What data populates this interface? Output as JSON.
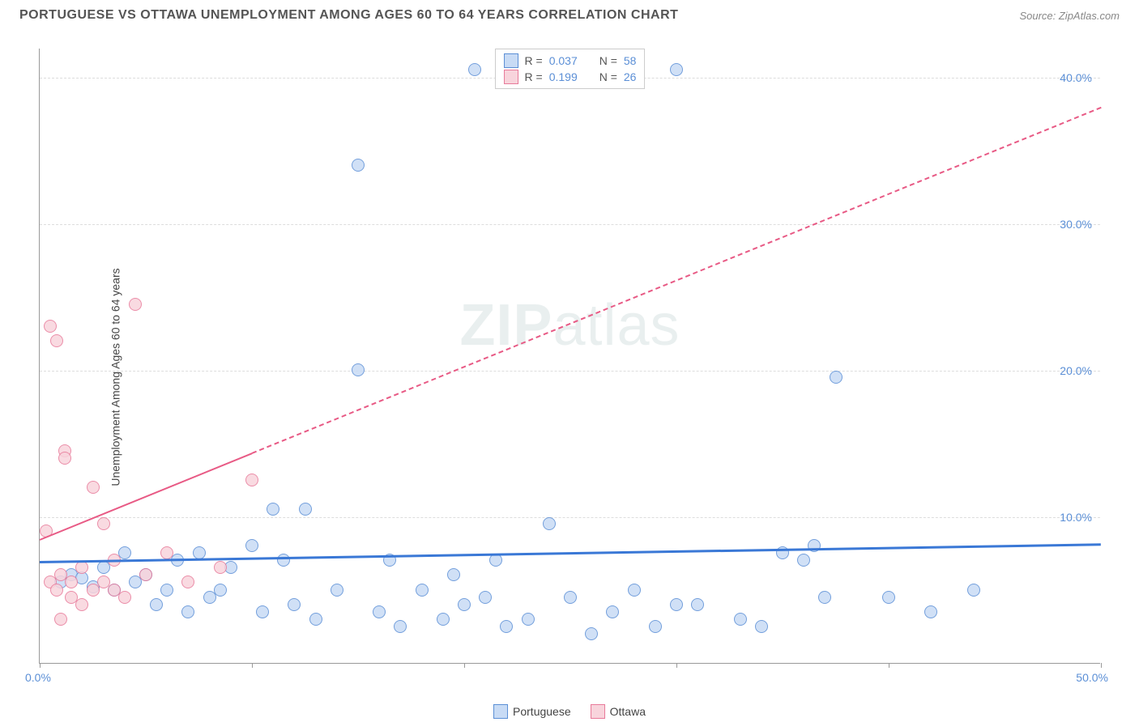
{
  "title": "PORTUGUESE VS OTTAWA UNEMPLOYMENT AMONG AGES 60 TO 64 YEARS CORRELATION CHART",
  "source": "Source: ZipAtlas.com",
  "watermark": {
    "part1": "ZIP",
    "part2": "atlas"
  },
  "chart": {
    "type": "scatter",
    "y_axis_label": "Unemployment Among Ages 60 to 64 years",
    "background_color": "#ffffff",
    "grid_color": "#dddddd",
    "axis_color": "#999999",
    "xlim": [
      0,
      50
    ],
    "ylim": [
      0,
      42
    ],
    "x_ticks": [
      0,
      10,
      20,
      30,
      40,
      50
    ],
    "x_tick_labels": {
      "0": "0.0%",
      "50": "50.0%"
    },
    "y_ticks": [
      10,
      20,
      30,
      40
    ],
    "y_tick_labels": [
      "10.0%",
      "20.0%",
      "30.0%",
      "40.0%"
    ],
    "marker_radius": 8,
    "marker_stroke_width": 1.5,
    "series": [
      {
        "name": "Portuguese",
        "fill": "#c8dbf5",
        "stroke": "#5b8fd6",
        "R": "0.037",
        "N": "58",
        "trend": {
          "y_intercept": 7.0,
          "y_at_xmax": 8.2,
          "color": "#3a78d6",
          "width": 3,
          "solid_until_x": 50
        },
        "points": [
          {
            "x": 1.0,
            "y": 5.5
          },
          {
            "x": 1.5,
            "y": 6.0
          },
          {
            "x": 2.0,
            "y": 5.8
          },
          {
            "x": 2.5,
            "y": 5.2
          },
          {
            "x": 3.0,
            "y": 6.5
          },
          {
            "x": 3.5,
            "y": 5.0
          },
          {
            "x": 4.0,
            "y": 7.5
          },
          {
            "x": 4.5,
            "y": 5.5
          },
          {
            "x": 5.0,
            "y": 6.0
          },
          {
            "x": 5.5,
            "y": 4.0
          },
          {
            "x": 6.0,
            "y": 5.0
          },
          {
            "x": 6.5,
            "y": 7.0
          },
          {
            "x": 7.0,
            "y": 3.5
          },
          {
            "x": 7.5,
            "y": 7.5
          },
          {
            "x": 8.0,
            "y": 4.5
          },
          {
            "x": 8.5,
            "y": 5.0
          },
          {
            "x": 9.0,
            "y": 6.5
          },
          {
            "x": 10.0,
            "y": 8.0
          },
          {
            "x": 10.5,
            "y": 3.5
          },
          {
            "x": 11.0,
            "y": 10.5
          },
          {
            "x": 11.5,
            "y": 7.0
          },
          {
            "x": 12.0,
            "y": 4.0
          },
          {
            "x": 12.5,
            "y": 10.5
          },
          {
            "x": 13.0,
            "y": 3.0
          },
          {
            "x": 14.0,
            "y": 5.0
          },
          {
            "x": 15.0,
            "y": 20.0
          },
          {
            "x": 15.0,
            "y": 34.0
          },
          {
            "x": 16.0,
            "y": 3.5
          },
          {
            "x": 16.5,
            "y": 7.0
          },
          {
            "x": 17.0,
            "y": 2.5
          },
          {
            "x": 18.0,
            "y": 5.0
          },
          {
            "x": 19.0,
            "y": 3.0
          },
          {
            "x": 19.5,
            "y": 6.0
          },
          {
            "x": 20.0,
            "y": 4.0
          },
          {
            "x": 20.5,
            "y": 40.5
          },
          {
            "x": 21.0,
            "y": 4.5
          },
          {
            "x": 21.5,
            "y": 7.0
          },
          {
            "x": 22.0,
            "y": 2.5
          },
          {
            "x": 23.0,
            "y": 3.0
          },
          {
            "x": 24.0,
            "y": 9.5
          },
          {
            "x": 25.0,
            "y": 4.5
          },
          {
            "x": 26.0,
            "y": 2.0
          },
          {
            "x": 27.0,
            "y": 3.5
          },
          {
            "x": 28.0,
            "y": 5.0
          },
          {
            "x": 29.0,
            "y": 2.5
          },
          {
            "x": 30.0,
            "y": 4.0
          },
          {
            "x": 30.0,
            "y": 40.5
          },
          {
            "x": 31.0,
            "y": 4.0
          },
          {
            "x": 33.0,
            "y": 3.0
          },
          {
            "x": 34.0,
            "y": 2.5
          },
          {
            "x": 35.0,
            "y": 7.5
          },
          {
            "x": 36.0,
            "y": 7.0
          },
          {
            "x": 36.5,
            "y": 8.0
          },
          {
            "x": 37.0,
            "y": 4.5
          },
          {
            "x": 37.5,
            "y": 19.5
          },
          {
            "x": 40.0,
            "y": 4.5
          },
          {
            "x": 42.0,
            "y": 3.5
          },
          {
            "x": 44.0,
            "y": 5.0
          }
        ]
      },
      {
        "name": "Ottawa",
        "fill": "#f8d4dc",
        "stroke": "#e87a9a",
        "R": "0.199",
        "N": "26",
        "trend": {
          "y_intercept": 8.5,
          "y_at_xmax": 38.0,
          "color": "#e85a85",
          "width": 2,
          "solid_until_x": 10
        },
        "points": [
          {
            "x": 0.3,
            "y": 9.0
          },
          {
            "x": 0.5,
            "y": 5.5
          },
          {
            "x": 0.5,
            "y": 23.0
          },
          {
            "x": 0.8,
            "y": 22.0
          },
          {
            "x": 0.8,
            "y": 5.0
          },
          {
            "x": 1.0,
            "y": 6.0
          },
          {
            "x": 1.0,
            "y": 3.0
          },
          {
            "x": 1.2,
            "y": 14.5
          },
          {
            "x": 1.2,
            "y": 14.0
          },
          {
            "x": 1.5,
            "y": 5.5
          },
          {
            "x": 1.5,
            "y": 4.5
          },
          {
            "x": 2.0,
            "y": 6.5
          },
          {
            "x": 2.0,
            "y": 4.0
          },
          {
            "x": 2.5,
            "y": 5.0
          },
          {
            "x": 2.5,
            "y": 12.0
          },
          {
            "x": 3.0,
            "y": 9.5
          },
          {
            "x": 3.0,
            "y": 5.5
          },
          {
            "x": 3.5,
            "y": 7.0
          },
          {
            "x": 3.5,
            "y": 5.0
          },
          {
            "x": 4.0,
            "y": 4.5
          },
          {
            "x": 4.5,
            "y": 24.5
          },
          {
            "x": 5.0,
            "y": 6.0
          },
          {
            "x": 6.0,
            "y": 7.5
          },
          {
            "x": 7.0,
            "y": 5.5
          },
          {
            "x": 8.5,
            "y": 6.5
          },
          {
            "x": 10.0,
            "y": 12.5
          }
        ]
      }
    ],
    "legend_bottom": [
      {
        "label": "Portuguese",
        "fill": "#c8dbf5",
        "stroke": "#5b8fd6"
      },
      {
        "label": "Ottawa",
        "fill": "#f8d4dc",
        "stroke": "#e87a9a"
      }
    ]
  }
}
